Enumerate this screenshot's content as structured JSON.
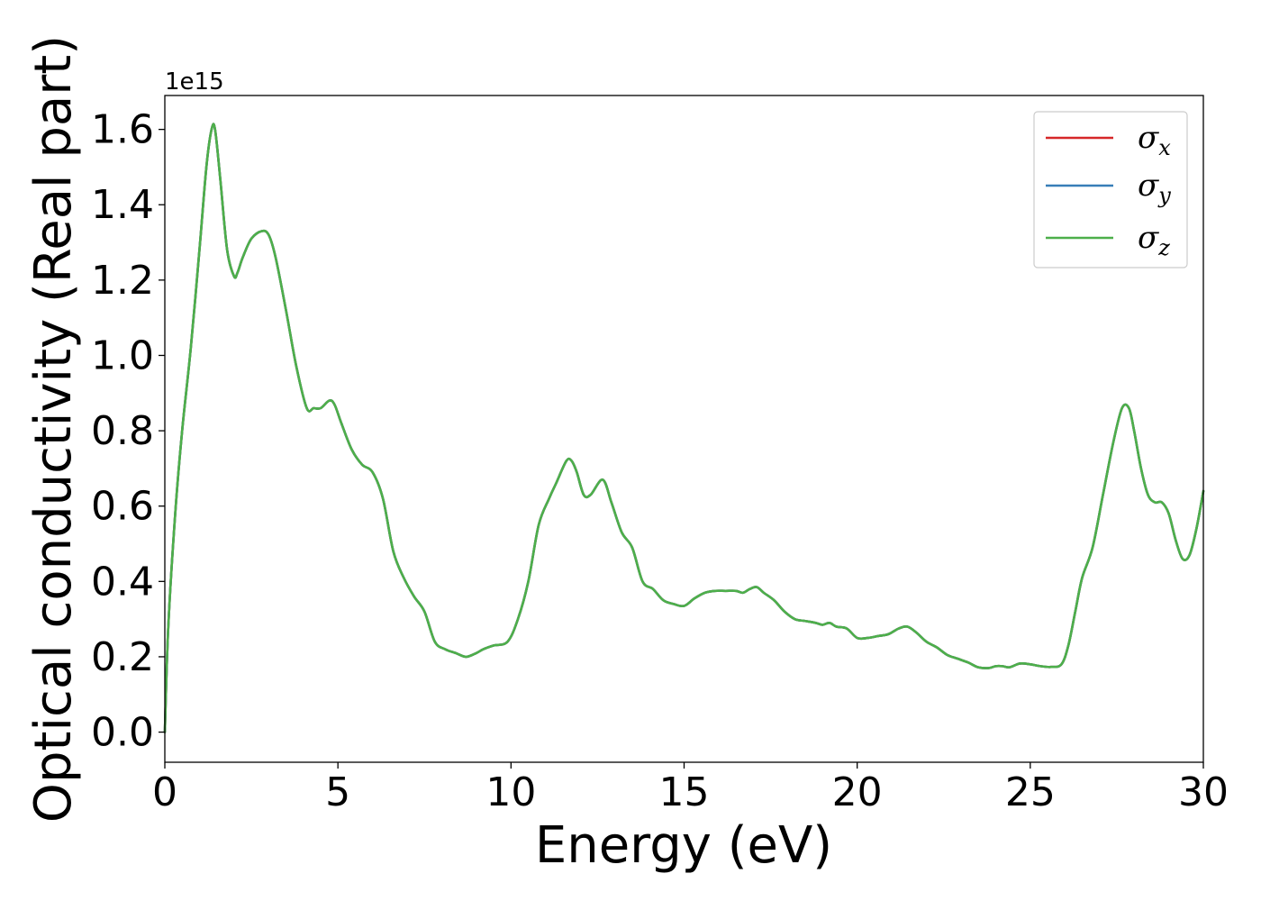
{
  "chart_data": {
    "type": "line",
    "xlabel": "Energy (eV)",
    "ylabel": "Optical conductivity (Real part)",
    "y_offset_label": "1e15",
    "xlim": [
      0,
      30
    ],
    "ylim": [
      -0.08,
      1.69
    ],
    "y_scale": "x1e15",
    "grid": false,
    "legend_position": "top-right",
    "x_ticks": [
      0,
      5,
      10,
      15,
      20,
      25,
      30
    ],
    "x_tick_labels": [
      "0",
      "5",
      "10",
      "15",
      "20",
      "25",
      "30"
    ],
    "y_ticks": [
      0.0,
      0.2,
      0.4,
      0.6,
      0.8,
      1.0,
      1.2,
      1.4,
      1.6
    ],
    "y_tick_labels": [
      "0.0",
      "0.2",
      "0.4",
      "0.6",
      "0.8",
      "1.0",
      "1.2",
      "1.4",
      "1.6"
    ],
    "x": [
      0,
      0.1,
      0.3,
      0.5,
      0.75,
      1.0,
      1.2,
      1.35,
      1.45,
      1.6,
      1.8,
      2.0,
      2.1,
      2.25,
      2.5,
      2.8,
      3.0,
      3.2,
      3.5,
      3.8,
      4.1,
      4.3,
      4.5,
      4.75,
      4.9,
      5.1,
      5.4,
      5.7,
      6.0,
      6.3,
      6.6,
      6.9,
      7.2,
      7.5,
      7.8,
      8.1,
      8.4,
      8.7,
      9.0,
      9.2,
      9.5,
      9.9,
      10.2,
      10.5,
      10.8,
      11.1,
      11.3,
      11.6,
      11.75,
      11.9,
      12.1,
      12.3,
      12.65,
      12.9,
      13.2,
      13.5,
      13.8,
      14.1,
      14.4,
      14.7,
      15.0,
      15.3,
      15.6,
      15.9,
      16.2,
      16.5,
      16.7,
      16.9,
      17.1,
      17.3,
      17.6,
      17.9,
      18.2,
      18.5,
      18.8,
      19.0,
      19.2,
      19.4,
      19.7,
      20.0,
      20.3,
      20.6,
      20.9,
      21.2,
      21.45,
      21.7,
      22.0,
      22.3,
      22.6,
      22.9,
      23.2,
      23.5,
      23.8,
      24.0,
      24.2,
      24.4,
      24.7,
      25.0,
      25.3,
      25.6,
      25.9,
      26.1,
      26.3,
      26.5,
      26.8,
      27.1,
      27.4,
      27.65,
      27.85,
      28.0,
      28.2,
      28.4,
      28.6,
      28.8,
      29.0,
      29.2,
      29.4,
      29.6,
      29.8,
      30.0
    ],
    "series": [
      {
        "name": "σx",
        "color": "#d62728",
        "values": [
          0.0,
          0.28,
          0.58,
          0.8,
          1.02,
          1.28,
          1.5,
          1.6,
          1.6,
          1.47,
          1.28,
          1.21,
          1.22,
          1.26,
          1.31,
          1.33,
          1.32,
          1.26,
          1.12,
          0.97,
          0.86,
          0.86,
          0.86,
          0.88,
          0.87,
          0.82,
          0.75,
          0.71,
          0.69,
          0.62,
          0.48,
          0.41,
          0.36,
          0.32,
          0.24,
          0.22,
          0.21,
          0.2,
          0.21,
          0.22,
          0.23,
          0.24,
          0.3,
          0.4,
          0.55,
          0.62,
          0.66,
          0.72,
          0.72,
          0.69,
          0.63,
          0.63,
          0.67,
          0.61,
          0.53,
          0.49,
          0.4,
          0.38,
          0.35,
          0.34,
          0.335,
          0.355,
          0.37,
          0.375,
          0.375,
          0.375,
          0.37,
          0.38,
          0.385,
          0.37,
          0.35,
          0.32,
          0.3,
          0.295,
          0.29,
          0.285,
          0.29,
          0.28,
          0.275,
          0.25,
          0.25,
          0.255,
          0.26,
          0.275,
          0.28,
          0.265,
          0.24,
          0.225,
          0.205,
          0.195,
          0.185,
          0.172,
          0.17,
          0.175,
          0.175,
          0.172,
          0.182,
          0.18,
          0.175,
          0.173,
          0.18,
          0.23,
          0.32,
          0.41,
          0.49,
          0.63,
          0.77,
          0.86,
          0.86,
          0.8,
          0.7,
          0.63,
          0.61,
          0.61,
          0.58,
          0.51,
          0.46,
          0.47,
          0.54,
          0.64
        ]
      },
      {
        "name": "σy",
        "color": "#377eb8",
        "values": [
          0.0,
          0.28,
          0.58,
          0.8,
          1.02,
          1.28,
          1.5,
          1.6,
          1.6,
          1.47,
          1.28,
          1.21,
          1.22,
          1.26,
          1.31,
          1.33,
          1.32,
          1.26,
          1.12,
          0.97,
          0.86,
          0.86,
          0.86,
          0.88,
          0.87,
          0.82,
          0.75,
          0.71,
          0.69,
          0.62,
          0.48,
          0.41,
          0.36,
          0.32,
          0.24,
          0.22,
          0.21,
          0.2,
          0.21,
          0.22,
          0.23,
          0.24,
          0.3,
          0.4,
          0.55,
          0.62,
          0.66,
          0.72,
          0.72,
          0.69,
          0.63,
          0.63,
          0.67,
          0.61,
          0.53,
          0.49,
          0.4,
          0.38,
          0.35,
          0.34,
          0.335,
          0.355,
          0.37,
          0.375,
          0.375,
          0.375,
          0.37,
          0.38,
          0.385,
          0.37,
          0.35,
          0.32,
          0.3,
          0.295,
          0.29,
          0.285,
          0.29,
          0.28,
          0.275,
          0.25,
          0.25,
          0.255,
          0.26,
          0.275,
          0.28,
          0.265,
          0.24,
          0.225,
          0.205,
          0.195,
          0.185,
          0.172,
          0.17,
          0.175,
          0.175,
          0.172,
          0.182,
          0.18,
          0.175,
          0.173,
          0.18,
          0.23,
          0.32,
          0.41,
          0.49,
          0.63,
          0.77,
          0.86,
          0.86,
          0.8,
          0.7,
          0.63,
          0.61,
          0.61,
          0.58,
          0.51,
          0.46,
          0.47,
          0.54,
          0.64
        ]
      },
      {
        "name": "σz",
        "color": "#4daf4a",
        "values": [
          0.0,
          0.28,
          0.58,
          0.8,
          1.02,
          1.28,
          1.5,
          1.6,
          1.6,
          1.47,
          1.28,
          1.21,
          1.22,
          1.26,
          1.31,
          1.33,
          1.32,
          1.26,
          1.12,
          0.97,
          0.86,
          0.86,
          0.86,
          0.88,
          0.87,
          0.82,
          0.75,
          0.71,
          0.69,
          0.62,
          0.48,
          0.41,
          0.36,
          0.32,
          0.24,
          0.22,
          0.21,
          0.2,
          0.21,
          0.22,
          0.23,
          0.24,
          0.3,
          0.4,
          0.55,
          0.62,
          0.66,
          0.72,
          0.72,
          0.69,
          0.63,
          0.63,
          0.67,
          0.61,
          0.53,
          0.49,
          0.4,
          0.38,
          0.35,
          0.34,
          0.335,
          0.355,
          0.37,
          0.375,
          0.375,
          0.375,
          0.37,
          0.38,
          0.385,
          0.37,
          0.35,
          0.32,
          0.3,
          0.295,
          0.29,
          0.285,
          0.29,
          0.28,
          0.275,
          0.25,
          0.25,
          0.255,
          0.26,
          0.275,
          0.28,
          0.265,
          0.24,
          0.225,
          0.205,
          0.195,
          0.185,
          0.172,
          0.17,
          0.175,
          0.175,
          0.172,
          0.182,
          0.18,
          0.175,
          0.173,
          0.18,
          0.23,
          0.32,
          0.41,
          0.49,
          0.63,
          0.77,
          0.86,
          0.86,
          0.8,
          0.7,
          0.63,
          0.61,
          0.61,
          0.58,
          0.51,
          0.46,
          0.47,
          0.54,
          0.64
        ]
      }
    ],
    "legend": [
      {
        "symbol": "σ",
        "subscript": "x",
        "color": "#d62728"
      },
      {
        "symbol": "σ",
        "subscript": "y",
        "color": "#377eb8"
      },
      {
        "symbol": "σ",
        "subscript": "z",
        "color": "#4daf4a"
      }
    ]
  }
}
